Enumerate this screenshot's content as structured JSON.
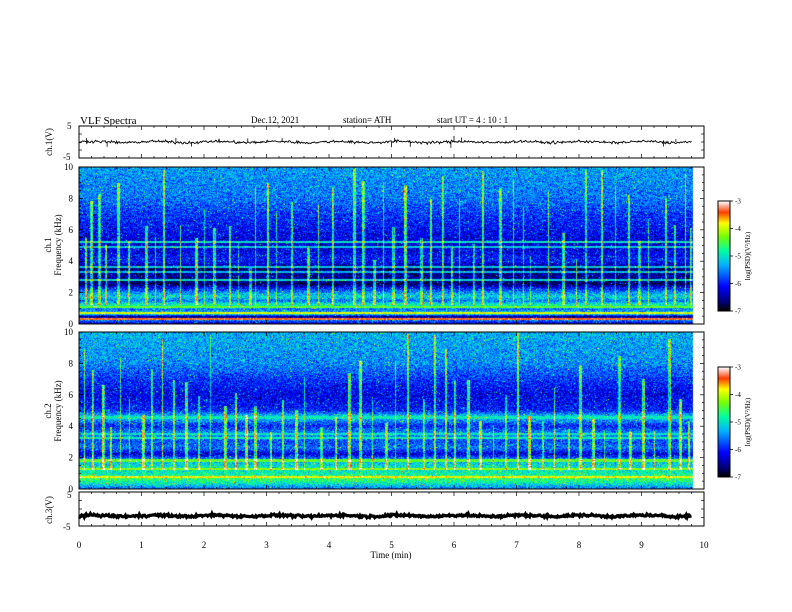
{
  "header": {
    "title": "VLF  Spectra",
    "date": "Dec.12, 2021",
    "station": "station= ATH",
    "start_ut": "start  UT  =   4  : 10 : 1"
  },
  "chart_data": [
    {
      "type": "line",
      "panel": "ch1-waveform",
      "ylabel": "ch.1(V)",
      "y_ticks": [
        "5",
        "-5"
      ],
      "ylim": [
        -5,
        5
      ],
      "xlim": [
        0,
        10
      ],
      "x_ticks": [
        "0",
        "1",
        "2",
        "3",
        "4",
        "5",
        "6",
        "7",
        "8",
        "9",
        "10"
      ],
      "x_extent_min": 9.8,
      "baseline_v": 0,
      "noise_v": 0.4,
      "spikes_v": [
        {
          "x": 0.12,
          "y": 1.2
        },
        {
          "x": 0.45,
          "y": -1.5
        },
        {
          "x": 1.55,
          "y": 1.3
        },
        {
          "x": 1.8,
          "y": -1.4
        },
        {
          "x": 2.7,
          "y": 1.1
        },
        {
          "x": 3.25,
          "y": 1.2
        },
        {
          "x": 5.0,
          "y": -1.6
        },
        {
          "x": 5.05,
          "y": 1.3
        },
        {
          "x": 5.3,
          "y": -1.5
        },
        {
          "x": 5.95,
          "y": -1.8
        },
        {
          "x": 6.0,
          "y": 1.9
        },
        {
          "x": 6.12,
          "y": 1.4
        },
        {
          "x": 9.35,
          "y": -1.4
        },
        {
          "x": 9.55,
          "y": 0.9
        }
      ],
      "color": "#000000"
    },
    {
      "type": "heatmap",
      "panel": "ch1-spectrogram",
      "ylabel": "ch.1",
      "ylabel2": "Frequency  (kHz)",
      "y_ticks": [
        "0",
        "2",
        "4",
        "6",
        "8",
        "10"
      ],
      "ylim": [
        0,
        10
      ],
      "xlim": [
        0,
        10
      ],
      "x_ticks": [
        "0",
        "1",
        "2",
        "3",
        "4",
        "5",
        "6",
        "7",
        "8",
        "9",
        "10"
      ],
      "x_extent_min": 9.8,
      "colorbar": {
        "label": "log(PSD)(V²/Hz)",
        "ticks": [
          "-3",
          "-4",
          "-5",
          "-6",
          "-7"
        ],
        "range": [
          -7,
          -3
        ]
      },
      "profile_khz": [
        [
          0.0,
          -6.3
        ],
        [
          0.2,
          -5.6
        ],
        [
          0.45,
          -6.6
        ],
        [
          0.6,
          -5.0
        ],
        [
          0.9,
          -5.6
        ],
        [
          1.2,
          -4.8
        ],
        [
          1.45,
          -5.6
        ],
        [
          1.7,
          -5.1
        ],
        [
          1.95,
          -5.4
        ],
        [
          2.3,
          -6.1
        ],
        [
          2.5,
          -6.7
        ],
        [
          3.0,
          -6.5
        ],
        [
          3.5,
          -6.7
        ],
        [
          4.0,
          -6.0
        ],
        [
          5.0,
          -6.3
        ],
        [
          6.0,
          -6.1
        ],
        [
          7.0,
          -5.9
        ],
        [
          8.0,
          -5.6
        ],
        [
          10.0,
          -5.4
        ]
      ],
      "lines_khz": [
        {
          "f": 0.3,
          "v": -3.4
        },
        {
          "f": 0.65,
          "v": -3.9
        },
        {
          "f": 1.05,
          "v": -4.4
        },
        {
          "f": 2.8,
          "v": -5.1
        },
        {
          "f": 3.3,
          "v": -5.3
        },
        {
          "f": 3.6,
          "v": -5.2
        },
        {
          "f": 4.9,
          "v": -5.2
        },
        {
          "f": 5.25,
          "v": -5.0
        }
      ],
      "bursts_min": [
        0.1,
        0.17,
        0.3,
        0.42,
        0.6,
        0.78,
        1.05,
        1.22,
        1.35,
        1.62,
        1.85,
        2.0,
        2.15,
        2.4,
        2.55,
        2.72,
        2.82,
        3.0,
        3.15,
        3.4,
        3.65,
        3.82,
        4.05,
        4.38,
        4.52,
        4.7,
        4.86,
        5.0,
        5.2,
        5.45,
        5.62,
        5.8,
        5.95,
        6.08,
        6.3,
        6.45,
        6.72,
        6.95,
        7.1,
        7.22,
        7.5,
        7.72,
        7.95,
        8.1,
        8.35,
        8.58,
        8.78,
        8.95,
        9.1,
        9.38,
        9.52,
        9.7,
        9.78
      ]
    },
    {
      "type": "heatmap",
      "panel": "ch2-spectrogram",
      "ylabel": "ch.2",
      "ylabel2": "Frequency  (kHz)",
      "y_ticks": [
        "0",
        "2",
        "4",
        "6",
        "8",
        "10"
      ],
      "ylim": [
        0,
        10
      ],
      "xlim": [
        0,
        10
      ],
      "x_ticks": [
        "0",
        "1",
        "2",
        "3",
        "4",
        "5",
        "6",
        "7",
        "8",
        "9",
        "10"
      ],
      "x_extent_min": 9.8,
      "colorbar": {
        "label": "log(PSD)(V²/Hz)",
        "ticks": [
          "-3",
          "-4",
          "-5",
          "-6",
          "-7"
        ],
        "range": [
          -7,
          -3
        ]
      },
      "profile_khz": [
        [
          0.0,
          -5.6
        ],
        [
          0.3,
          -5.0
        ],
        [
          0.6,
          -4.6
        ],
        [
          1.0,
          -4.9
        ],
        [
          1.4,
          -5.0
        ],
        [
          1.8,
          -5.3
        ],
        [
          2.2,
          -6.3
        ],
        [
          2.6,
          -5.6
        ],
        [
          3.0,
          -5.8
        ],
        [
          3.5,
          -5.4
        ],
        [
          4.0,
          -6.0
        ],
        [
          4.6,
          -5.1
        ],
        [
          5.0,
          -6.0
        ],
        [
          6.0,
          -6.2
        ],
        [
          7.0,
          -5.9
        ],
        [
          8.0,
          -5.5
        ],
        [
          10.0,
          -5.3
        ]
      ],
      "lines_khz": [
        {
          "f": 0.75,
          "v": -3.8
        },
        {
          "f": 1.25,
          "v": -4.2
        },
        {
          "f": 1.8,
          "v": -4.4
        },
        {
          "f": 3.25,
          "v": -4.9
        },
        {
          "f": 3.5,
          "v": -5.0
        },
        {
          "f": 4.55,
          "v": -5.0
        }
      ],
      "bursts_min": [
        0.08,
        0.2,
        0.36,
        0.5,
        0.66,
        0.8,
        1.0,
        1.15,
        1.32,
        1.5,
        1.7,
        1.9,
        2.1,
        2.32,
        2.5,
        2.66,
        2.8,
        3.05,
        3.25,
        3.45,
        3.6,
        3.85,
        4.1,
        4.3,
        4.48,
        4.68,
        4.9,
        5.05,
        5.25,
        5.5,
        5.68,
        5.85,
        6.0,
        6.2,
        6.4,
        6.62,
        6.82,
        7.0,
        7.18,
        7.4,
        7.6,
        7.82,
        8.0,
        8.2,
        8.4,
        8.62,
        8.8,
        9.0,
        9.2,
        9.42,
        9.6,
        9.75
      ]
    },
    {
      "type": "line",
      "panel": "ch3-waveform",
      "ylabel": "ch.3(V)",
      "y_ticks": [
        "5",
        "-5"
      ],
      "ylim": [
        -5,
        5
      ],
      "xlim": [
        0,
        10
      ],
      "x_ticks": [
        "0",
        "1",
        "2",
        "3",
        "4",
        "5",
        "6",
        "7",
        "8",
        "9",
        "10"
      ],
      "xlabel": "Time  (min)",
      "x_extent_min": 9.8,
      "baseline_v": -2.0,
      "noise_v": 0.35,
      "color": "#000000"
    }
  ]
}
